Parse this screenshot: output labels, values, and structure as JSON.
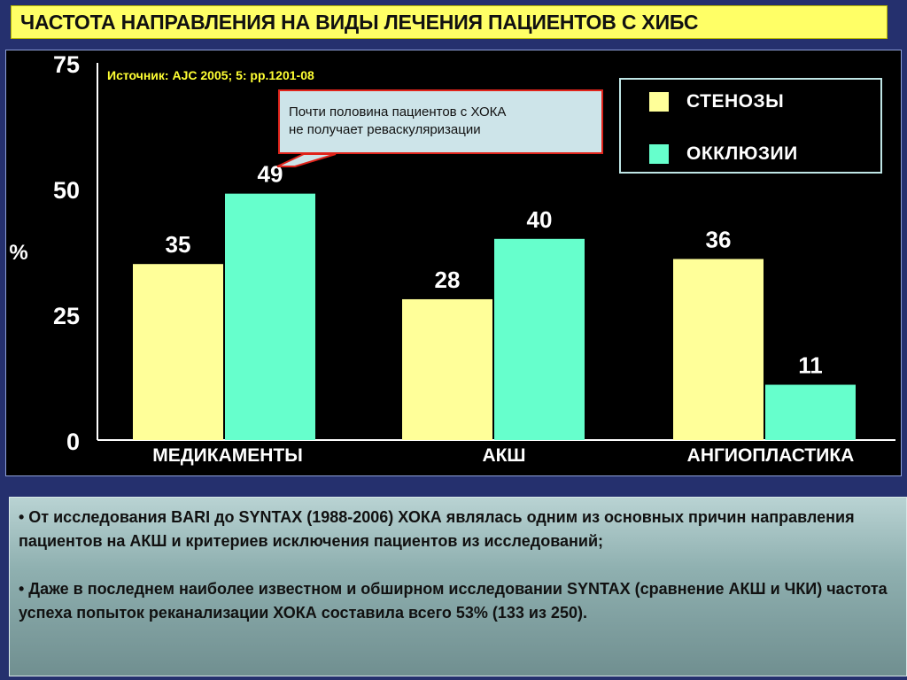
{
  "title": "ЧАСТОТА НАПРАВЛЕНИЯ НА ВИДЫ ЛЕЧЕНИЯ ПАЦИЕНТОВ С ХИБС",
  "source": "Источник: AJC  2005; 5: pp.1201-08",
  "callout": {
    "line1": "Почти половина пациентов с ХОКА",
    "line2": "не получает реваскуляризации"
  },
  "colors": {
    "stenosis": "#ffff99",
    "occlusion": "#66ffcc",
    "title_bg": "#ffff66",
    "background": "#25306e"
  },
  "chart_data": {
    "type": "bar",
    "ylabel": "%",
    "ylim": [
      0,
      75
    ],
    "y_ticks": [
      "0",
      "25",
      "50",
      "75"
    ],
    "categories": [
      "МЕДИКАМЕНТЫ",
      "АКШ",
      "АНГИОПЛАСТИКА"
    ],
    "series": [
      {
        "name": "СТЕНОЗЫ",
        "values": [
          35,
          28,
          36
        ],
        "color": "#ffff99"
      },
      {
        "name": "ОККЛЮЗИИ",
        "values": [
          49,
          40,
          11
        ],
        "color": "#66ffcc"
      }
    ],
    "legend_position": "top-right",
    "grid": false
  },
  "bullets": [
    "•  От исследования BARI до SYNTAX (1988-2006) ХОКА являлась одним из основных причин направления пациентов на АКШ и критериев исключения пациентов из исследований;",
    "•  Даже в последнем наиболее известном и обширном исследовании SYNTAX (сравнение АКШ  и ЧКИ) частота успеха попыток реканализации ХОКА составила всего 53% (133 из 250)."
  ]
}
